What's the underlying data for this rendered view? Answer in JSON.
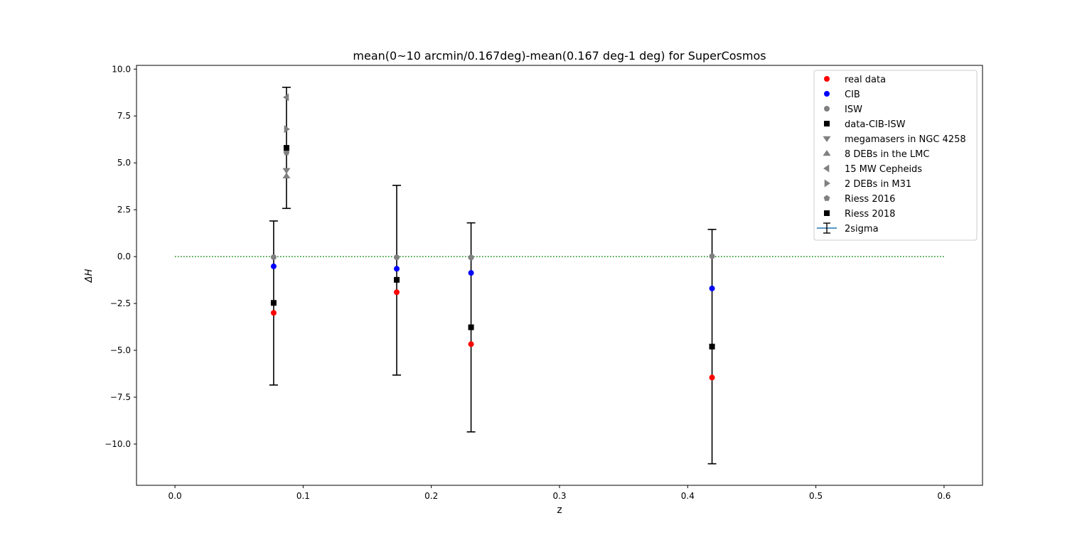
{
  "chart_data": {
    "type": "scatter",
    "title": "mean(0~10 arcmin/0.167deg)-mean(0.167 deg-1 deg) for SuperCosmos",
    "xlabel": "z",
    "ylabel": "ΔH",
    "xlim": [
      -0.03,
      0.63
    ],
    "ylim": [
      -12.2,
      10.2
    ],
    "x_ticks": [
      0.0,
      0.1,
      0.2,
      0.3,
      0.4,
      0.5,
      0.6
    ],
    "x_tick_labels": [
      "0.0",
      "0.1",
      "0.2",
      "0.3",
      "0.4",
      "0.5",
      "0.6"
    ],
    "y_ticks": [
      10.0,
      7.5,
      5.0,
      2.5,
      0.0,
      -2.5,
      -5.0,
      -7.5,
      -10.0
    ],
    "y_tick_labels": [
      "10.0",
      "7.5",
      "5.0",
      "2.5",
      "0.0",
      "−2.5",
      "−5.0",
      "−7.5",
      "−10.0"
    ],
    "grid": false,
    "legend_position": "top-right",
    "reference_line": {
      "y": 0,
      "x_range": [
        0.0,
        0.6
      ],
      "color": "#008000",
      "style": "dotted"
    },
    "series": [
      {
        "name": "real data",
        "marker": "circle",
        "color": "#ff0000",
        "points": [
          [
            0.077,
            -3.0
          ],
          [
            0.173,
            -1.9
          ],
          [
            0.231,
            -4.67
          ],
          [
            0.419,
            -6.45
          ]
        ]
      },
      {
        "name": "CIB",
        "marker": "circle",
        "color": "#0000ff",
        "points": [
          [
            0.077,
            -0.52
          ],
          [
            0.173,
            -0.65
          ],
          [
            0.231,
            -0.87
          ],
          [
            0.419,
            -1.7
          ]
        ]
      },
      {
        "name": "ISW",
        "marker": "circle",
        "color": "#808080",
        "points": [
          [
            0.077,
            -0.03
          ],
          [
            0.173,
            -0.04
          ],
          [
            0.231,
            -0.05
          ],
          [
            0.419,
            0.02
          ]
        ]
      },
      {
        "name": "data-CIB-ISW",
        "marker": "square",
        "color": "#000000",
        "points": [
          [
            0.077,
            -2.47
          ],
          [
            0.173,
            -1.24
          ],
          [
            0.231,
            -3.77
          ],
          [
            0.419,
            -4.8
          ]
        ]
      },
      {
        "name": "megamasers in NGC 4258",
        "marker": "triangle-down",
        "color": "#808080",
        "points": [
          [
            0.087,
            4.6
          ]
        ]
      },
      {
        "name": "8 DEBs in the LMC",
        "marker": "triangle-up",
        "color": "#808080",
        "points": [
          [
            0.087,
            4.3
          ]
        ]
      },
      {
        "name": "15 MW Cepheids",
        "marker": "triangle-left",
        "color": "#808080",
        "points": [
          [
            0.087,
            8.5
          ]
        ]
      },
      {
        "name": "2 DEBs in M31",
        "marker": "triangle-right",
        "color": "#808080",
        "points": [
          [
            0.087,
            6.8
          ]
        ]
      },
      {
        "name": "Riess 2016",
        "marker": "pentagon",
        "color": "#808080",
        "points": [
          [
            0.087,
            5.55
          ]
        ]
      },
      {
        "name": "Riess 2018",
        "marker": "square",
        "color": "#000000",
        "points": [
          [
            0.087,
            5.8
          ]
        ]
      }
    ],
    "errorbars": {
      "name": "2sigma",
      "color": "#000000",
      "legend_line_color": "#1f77b4",
      "bars": [
        {
          "x": 0.077,
          "low": -6.85,
          "high": 1.9
        },
        {
          "x": 0.087,
          "low": 2.57,
          "high": 9.03
        },
        {
          "x": 0.173,
          "low": -6.32,
          "high": 3.8
        },
        {
          "x": 0.231,
          "low": -9.35,
          "high": 1.8
        },
        {
          "x": 0.419,
          "low": -11.05,
          "high": 1.45
        }
      ]
    }
  }
}
